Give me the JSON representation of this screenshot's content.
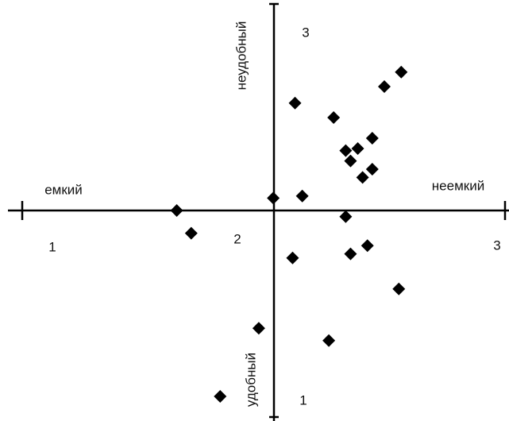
{
  "chart_data": {
    "type": "scatter",
    "xlabel_left": "емкий",
    "xlabel_right": "неемкий",
    "ylabel_top": "неудобный",
    "ylabel_bottom": "удобный",
    "xlim": [
      1,
      3
    ],
    "ylim": [
      1,
      3
    ],
    "xticks": [
      1,
      2,
      3
    ],
    "yticks": [
      1,
      3
    ],
    "color": "#000000",
    "x": [
      2.57,
      2.5,
      2.13,
      2.29,
      2.45,
      2.34,
      2.39,
      2.36,
      2.45,
      2.41,
      2.04,
      2.16,
      1.64,
      1.7,
      2.34,
      2.12,
      2.36,
      2.43,
      2.56,
      1.98,
      2.27,
      1.82
    ],
    "y": [
      2.67,
      2.6,
      2.52,
      2.45,
      2.35,
      2.29,
      2.3,
      2.24,
      2.2,
      2.16,
      2.06,
      2.07,
      2.0,
      1.89,
      1.97,
      1.77,
      1.79,
      1.83,
      1.62,
      1.43,
      1.37,
      1.1
    ]
  }
}
